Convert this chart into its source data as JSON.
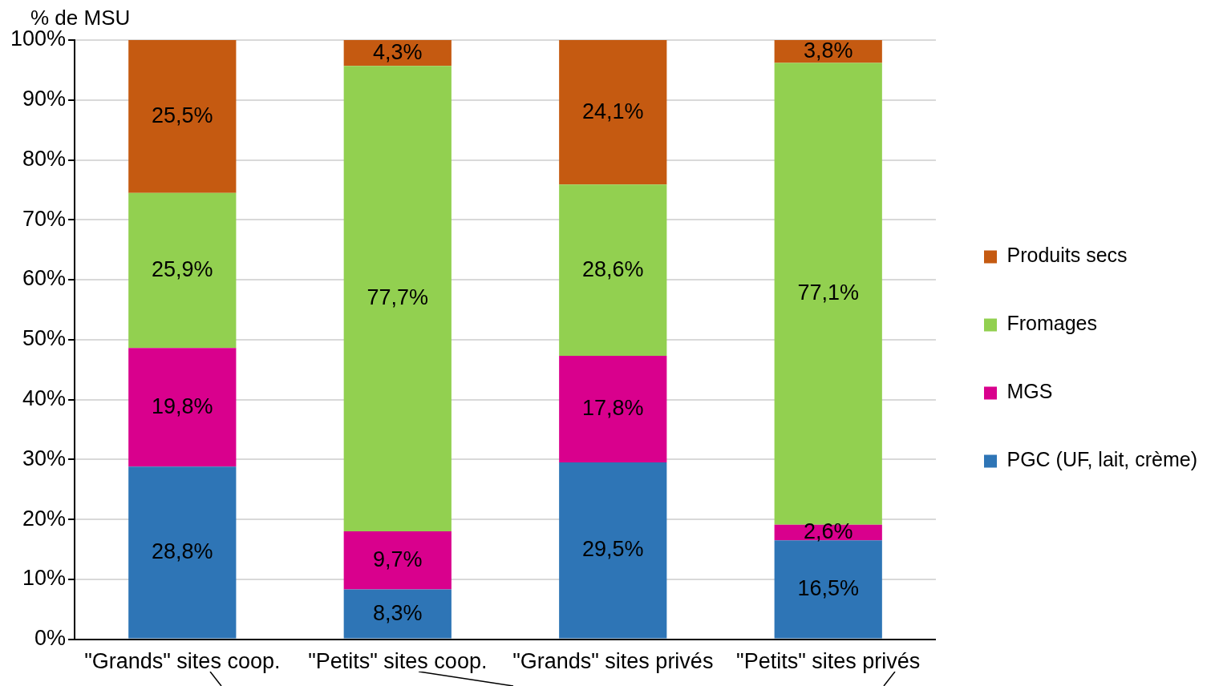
{
  "chart_data": {
    "type": "bar",
    "stacked": true,
    "ylabel": "% de MSU",
    "categories": [
      "\"Grands\" sites coop.",
      "\"Petits\" sites coop.",
      "\"Grands\" sites privés",
      "\"Petits\" sites privés"
    ],
    "series": [
      {
        "name": "PGC (UF, lait, crème)",
        "color": "#2e75b6",
        "values": [
          28.8,
          8.3,
          29.5,
          16.5
        ],
        "value_labels": [
          "28,8%",
          "8,3%",
          "29,5%",
          "16,5%"
        ]
      },
      {
        "name": "MGS",
        "color": "#d9008d",
        "values": [
          19.8,
          9.7,
          17.8,
          2.6
        ],
        "value_labels": [
          "19,8%",
          "9,7%",
          "17,8%",
          "2,6%"
        ]
      },
      {
        "name": "Fromages",
        "color": "#92d050",
        "values": [
          25.9,
          77.7,
          28.6,
          77.1
        ],
        "value_labels": [
          "25,9%",
          "77,7%",
          "28,6%",
          "77,1%"
        ]
      },
      {
        "name": "Produits secs",
        "color": "#c55a11",
        "values": [
          25.5,
          4.3,
          24.1,
          3.8
        ],
        "value_labels": [
          "25,5%",
          "4,3%",
          "24,1%",
          "3,8%"
        ]
      }
    ],
    "ylim": [
      0,
      100
    ],
    "yticks": [
      {
        "value": 0,
        "label": "0%"
      },
      {
        "value": 10,
        "label": "10%"
      },
      {
        "value": 20,
        "label": "20%"
      },
      {
        "value": 30,
        "label": "30%"
      },
      {
        "value": 40,
        "label": "40%"
      },
      {
        "value": 50,
        "label": "50%"
      },
      {
        "value": 60,
        "label": "60%"
      },
      {
        "value": 70,
        "label": "70%"
      },
      {
        "value": 80,
        "label": "80%"
      },
      {
        "value": 90,
        "label": "90%"
      },
      {
        "value": 100,
        "label": "100%"
      }
    ],
    "grid": "y",
    "legend": "right"
  }
}
